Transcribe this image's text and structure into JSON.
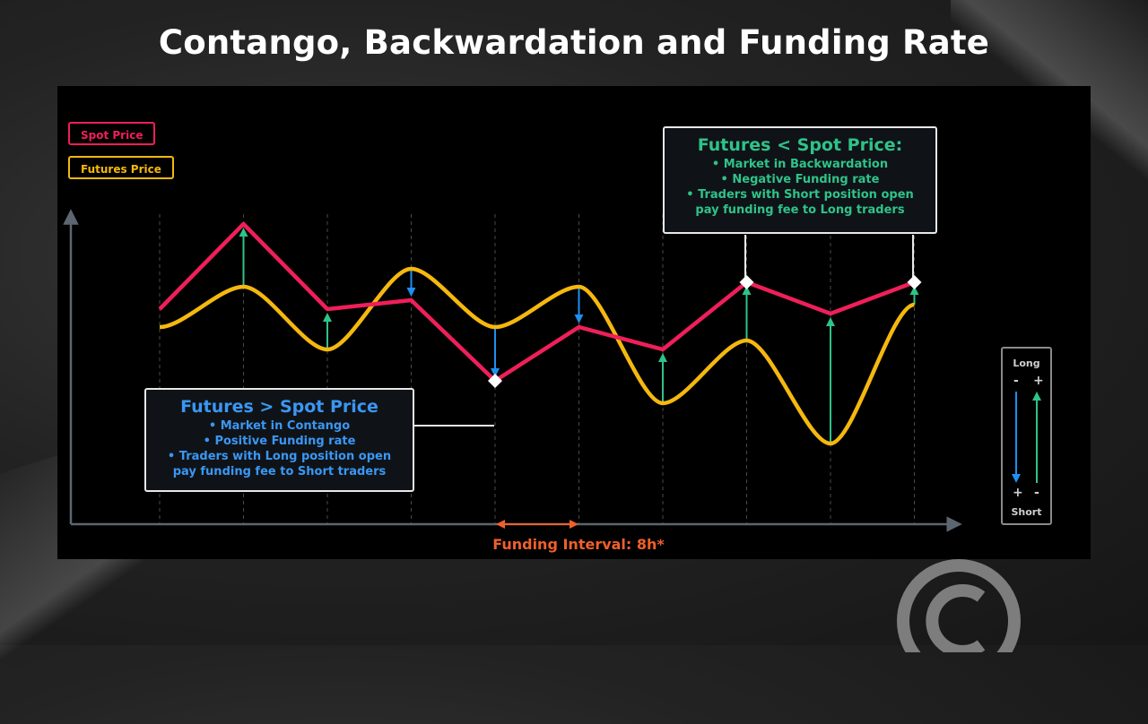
{
  "title": "Contango, Backwardation and Funding Rate",
  "legend": {
    "spot": "Spot Price",
    "futures": "Futures Price"
  },
  "colors": {
    "spot": "#ef1f5a",
    "futures": "#f5b80e",
    "long_arrow": "#2fc389",
    "short_arrow": "#1f8ff0",
    "funding": "#f0602a"
  },
  "backwardation": {
    "heading": "Futures < Spot Price:",
    "lines": [
      "Market in Backwardation",
      "Negative Funding rate",
      "Traders with Short position open",
      "pay funding fee to Long traders"
    ]
  },
  "contango": {
    "heading": "Futures > Spot Price",
    "lines": [
      "Market in Contango",
      "Positive Funding rate",
      "Traders with Long position open",
      "pay funding fee to Short traders"
    ]
  },
  "long_short": {
    "long": "Long",
    "short": "Short",
    "top_left": "-",
    "top_right": "+",
    "bottom_left": "+",
    "bottom_right": "-"
  },
  "funding_interval": "Funding Interval: 8h*",
  "chart_data": {
    "type": "line",
    "x": [
      1,
      2,
      3,
      4,
      5,
      6,
      7,
      8,
      9,
      10
    ],
    "series": [
      {
        "name": "Spot Price",
        "values": [
          5.0,
          6.9,
          5.0,
          5.2,
          3.4,
          4.6,
          4.1,
          5.6,
          4.9,
          5.6
        ]
      },
      {
        "name": "Futures Price",
        "values": [
          4.6,
          5.5,
          4.1,
          5.9,
          4.6,
          5.5,
          2.9,
          4.3,
          2.0,
          5.1
        ]
      }
    ],
    "ylim": [
      0,
      8
    ],
    "grid": "vertical dashed",
    "legend_placement": "top-left"
  }
}
